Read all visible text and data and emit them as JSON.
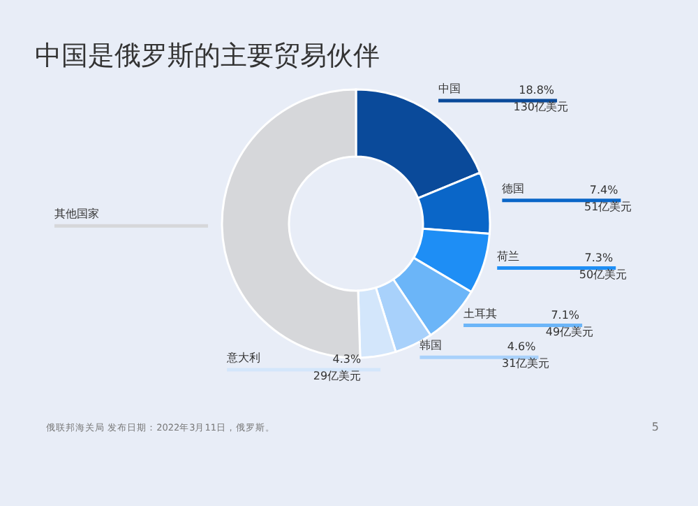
{
  "chart_data": {
    "type": "donut",
    "title": "中国是俄罗斯的主要贸易伙伴",
    "categories": [
      "中国",
      "德国",
      "荷兰",
      "土耳其",
      "韩国",
      "意大利",
      "其他国家"
    ],
    "values": [
      18.8,
      7.4,
      7.3,
      7.1,
      4.6,
      4.3,
      50.5
    ],
    "colors": [
      "#0a4a9a",
      "#0a66c8",
      "#1e8ef5",
      "#6bb5f8",
      "#a8d1fb",
      "#d3e6fb",
      "#d6d7da"
    ],
    "value_labels": [
      "18.8%\n130亿美元",
      "7.4%\n51亿美元",
      "7.3%\n50亿美元",
      "7.1%\n49亿美元",
      "4.6%\n31亿美元",
      "4.3%\n29亿美元",
      null
    ],
    "annotations": [
      "俄联邦海关局 发布日期：2022年3月11日，俄罗斯。",
      "5"
    ]
  }
}
